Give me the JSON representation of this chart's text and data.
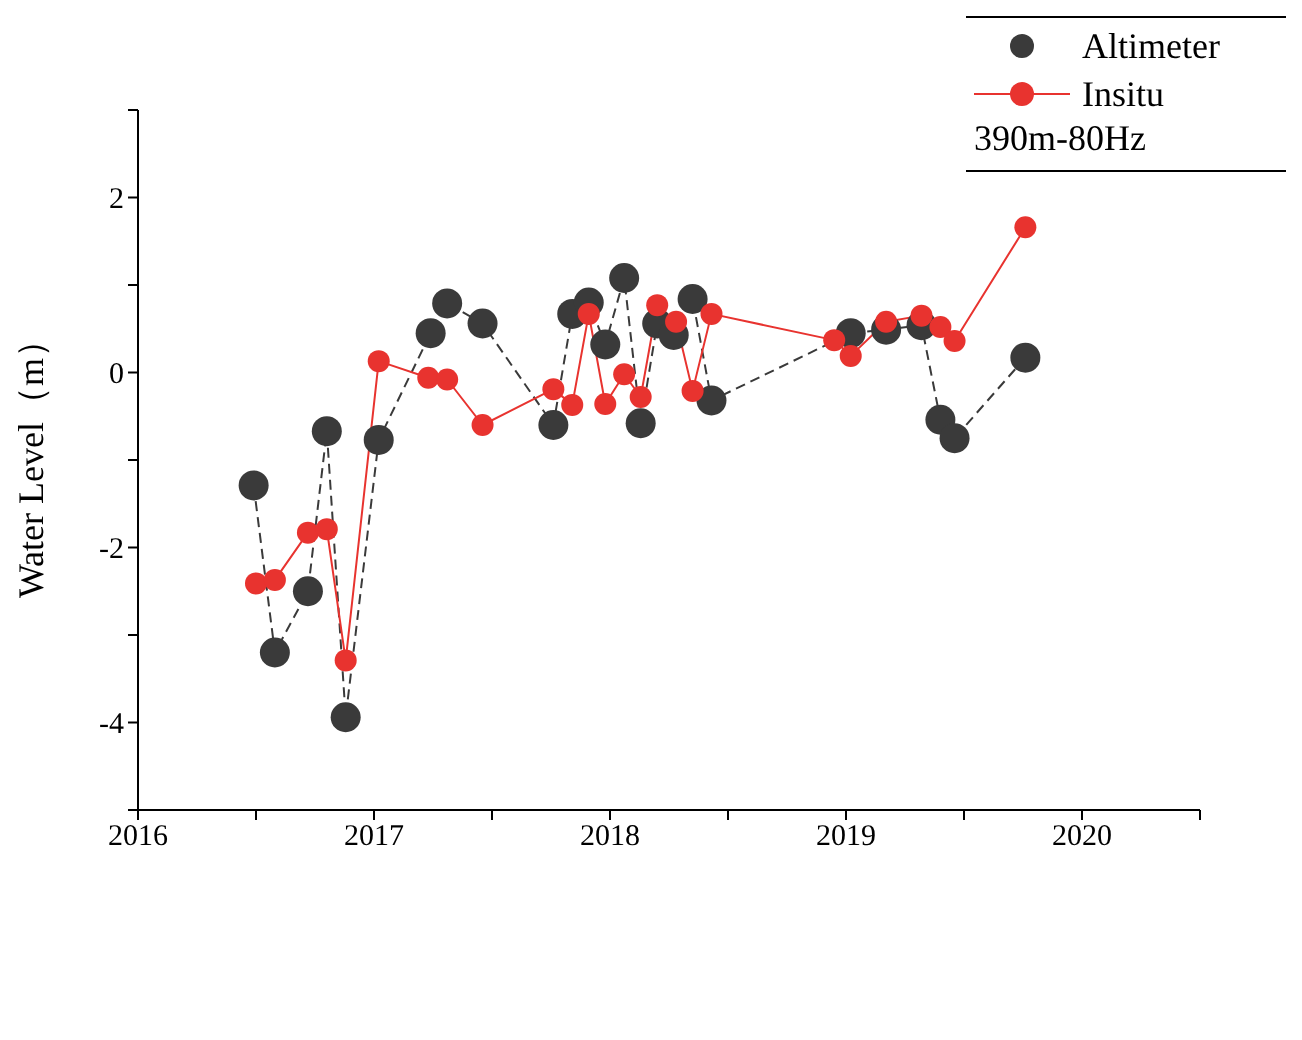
{
  "chart_data": {
    "type": "line",
    "ylabel": "Water Level（m）",
    "legend": "top right",
    "marker": "circle",
    "grid": false,
    "annotations": [
      "390m-80Hz"
    ],
    "xlim": [
      2016,
      2020.5
    ],
    "xticks": [
      2016,
      {
        "value": 2016.5,
        "label": null
      },
      2017,
      {
        "value": 2017.5,
        "label": null
      },
      2018,
      {
        "value": 2018.5,
        "label": null
      },
      2019,
      {
        "value": 2019.5,
        "label": null
      },
      2020,
      {
        "value": 2020.5,
        "label": null
      }
    ],
    "ylim": [
      -5,
      3
    ],
    "yticks": [
      {
        "value": -5,
        "label": null
      },
      -4,
      {
        "value": -3,
        "label": null
      },
      -2,
      {
        "value": -1,
        "label": null
      },
      0,
      {
        "value": 1,
        "label": null
      },
      2,
      {
        "value": 3,
        "label": null
      }
    ],
    "series": [
      {
        "name": "Altimeter",
        "color": "#3a3a3a",
        "line_style": "dashed",
        "x": [
          2016.49,
          2016.58,
          2016.72,
          2016.8,
          2016.88,
          2017.02,
          2017.24,
          2017.31,
          2017.46,
          2017.76,
          2017.84,
          2017.91,
          2017.98,
          2018.06,
          2018.13,
          2018.2,
          2018.27,
          2018.35,
          2018.43,
          2019.02,
          2019.17,
          2019.32,
          2019.4,
          2019.46,
          2019.76
        ],
        "values": [
          -1.29,
          -3.2,
          -2.5,
          -0.67,
          -3.94,
          -0.77,
          0.45,
          0.79,
          0.56,
          -0.6,
          0.67,
          0.8,
          0.32,
          1.08,
          -0.58,
          0.56,
          0.43,
          0.84,
          -0.32,
          0.45,
          0.49,
          0.54,
          -0.54,
          -0.75,
          0.17
        ]
      },
      {
        "name": "Insitu",
        "color": "#e8332f",
        "line_style": "solid",
        "x": [
          2016.5,
          2016.58,
          2016.72,
          2016.8,
          2016.88,
          2017.02,
          2017.23,
          2017.31,
          2017.46,
          2017.76,
          2017.84,
          2017.91,
          2017.98,
          2018.06,
          2018.13,
          2018.2,
          2018.28,
          2018.35,
          2018.43,
          2018.95,
          2019.02,
          2019.17,
          2019.32,
          2019.4,
          2019.46,
          2019.76
        ],
        "values": [
          -2.41,
          -2.37,
          -1.83,
          -1.79,
          -3.29,
          0.13,
          -0.06,
          -0.08,
          -0.6,
          -0.19,
          -0.37,
          0.67,
          -0.36,
          -0.02,
          -0.28,
          0.77,
          0.58,
          -0.21,
          0.67,
          0.37,
          0.19,
          0.58,
          0.65,
          0.52,
          0.36,
          1.66
        ]
      }
    ]
  }
}
